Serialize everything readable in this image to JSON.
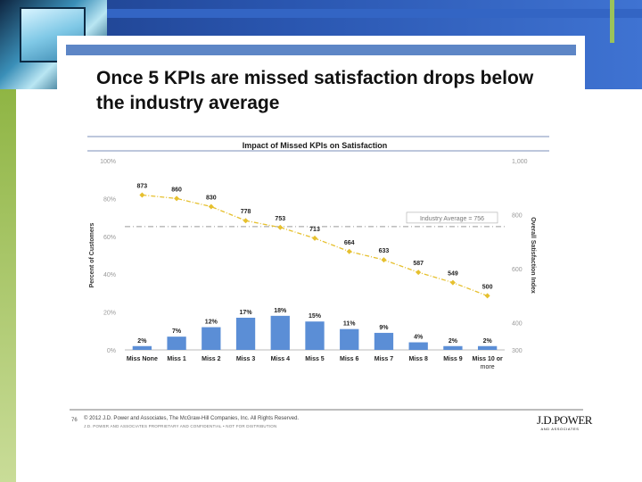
{
  "slide": {
    "title": "Once 5 KPIs are missed satisfaction drops below the industry average",
    "page_number": "76",
    "copyright": "© 2012 J.D. Power and Associates, The McGraw-Hill Companies, Inc. All Rights Reserved.",
    "legal": "J.D. POWER AND ASSOCIATES PROPRIETARY AND CONFIDENTIAL • NOT FOR DISTRIBUTION",
    "logo_main": "J.D.POWER",
    "logo_sub": "AND ASSOCIATES"
  },
  "colors": {
    "bar": "#5b8ed6",
    "line": "#e6c02e",
    "average": "#999999",
    "chart_rule": "#7b8fb8"
  },
  "chart_data": {
    "type": "bar+line",
    "title": "Impact of Missed KPIs on Satisfaction",
    "categories": [
      "Miss None",
      "Miss 1",
      "Miss 2",
      "Miss 3",
      "Miss 4",
      "Miss 5",
      "Miss 6",
      "Miss 7",
      "Miss 8",
      "Miss 9",
      "Miss 10 or more"
    ],
    "series": [
      {
        "name": "Percent of Customers",
        "type": "bar",
        "axis": "left",
        "values": [
          2,
          7,
          12,
          17,
          18,
          15,
          11,
          9,
          4,
          2,
          2
        ],
        "labels": [
          "2%",
          "7%",
          "12%",
          "17%",
          "18%",
          "15%",
          "11%",
          "9%",
          "4%",
          "2%",
          "2%"
        ]
      },
      {
        "name": "Overall Satisfaction Index",
        "type": "line",
        "axis": "right",
        "values": [
          873,
          860,
          830,
          778,
          753,
          713,
          664,
          633,
          587,
          549,
          500
        ],
        "labels": [
          "873",
          "860",
          "830",
          "778",
          "753",
          "713",
          "664",
          "633",
          "587",
          "549",
          "500"
        ]
      }
    ],
    "ylabel": "Percent of Customers",
    "y2label": "Overall Satisfaction Index",
    "ylim": [
      0,
      100
    ],
    "y2lim": [
      300,
      1000
    ],
    "yticks": [
      "0%",
      "20%",
      "40%",
      "60%",
      "80%",
      "100%"
    ],
    "y2ticks": [
      "300",
      "400",
      "600",
      "800",
      "1,000"
    ],
    "y2tick_values": [
      300,
      400,
      600,
      800,
      1000
    ],
    "reference_line": {
      "label": "Industry Average = 756",
      "value": 756
    },
    "grid": false
  }
}
